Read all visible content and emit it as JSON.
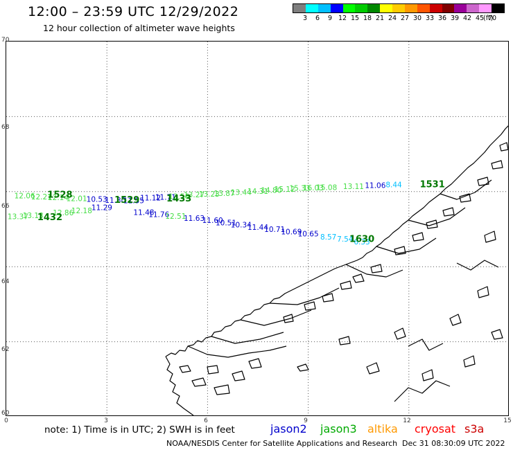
{
  "title": "12:00 – 23:59 UTC 12/29/2022",
  "subtitle": "12 hour collection of altimeter wave heights",
  "colorbar": {
    "colors": [
      "#7f7f7f",
      "#00ffff",
      "#00bfff",
      "#0000ff",
      "#00ff00",
      "#00cc00",
      "#008800",
      "#ffff00",
      "#ffcc00",
      "#ff9900",
      "#ff5500",
      "#cc0000",
      "#800000",
      "#990099",
      "#cc66cc",
      "#ff99ff",
      "#000000"
    ],
    "ticks": [
      "3",
      "6",
      "9",
      "12",
      "15",
      "18",
      "21",
      "24",
      "27",
      "30",
      "33",
      "36",
      "39",
      "42",
      "45",
      "70"
    ],
    "unit": "(ft)"
  },
  "axes": {
    "lat_labels": [
      "70",
      "68",
      "66",
      "64",
      "62",
      "60"
    ],
    "lon_labels": [
      "0",
      "3",
      "6",
      "9",
      "12",
      "15"
    ]
  },
  "satellites": [
    {
      "name": "jason2",
      "color": "#0000cc"
    },
    {
      "name": "jason3",
      "color": "#00aa00"
    },
    {
      "name": "altika",
      "color": "#ff9900"
    },
    {
      "name": "cryosat",
      "color": "#ff0000"
    },
    {
      "name": "s3a",
      "color": "#cc0000"
    }
  ],
  "note": "note:  1) Time is in UTC;  2) SWH is in feet",
  "credit": "NOAA/NESDIS Center for Satellite Applications and Research",
  "generated": "Dec 31 08:30:09 UTC 2022",
  "observations": [
    {
      "t": "12.06",
      "lon": 0.55,
      "lat": 65.88,
      "c": "#44dd44"
    },
    {
      "t": "12.21",
      "lon": 1.05,
      "lat": 65.85,
      "c": "#44dd44"
    },
    {
      "t": "12.14",
      "lon": 1.55,
      "lat": 65.83,
      "c": "#44dd44"
    },
    {
      "t": "12.01",
      "lon": 2.1,
      "lat": 65.8,
      "c": "#44dd44"
    },
    {
      "t": "10.53",
      "lon": 2.7,
      "lat": 65.78,
      "c": "#0000cc"
    },
    {
      "t": "11.30",
      "lon": 3.25,
      "lat": 65.76,
      "c": "#0000cc"
    },
    {
      "t": "11.55",
      "lon": 3.8,
      "lat": 65.75,
      "c": "#0000cc"
    },
    {
      "t": "11.12",
      "lon": 4.3,
      "lat": 65.82,
      "c": "#0000cc"
    },
    {
      "t": "11.71",
      "lon": 4.75,
      "lat": 65.84,
      "c": "#0000cc"
    },
    {
      "t": "13.56",
      "lon": 5.15,
      "lat": 65.86,
      "c": "#44dd44"
    },
    {
      "t": "13.27",
      "lon": 5.6,
      "lat": 65.9,
      "c": "#44dd44"
    },
    {
      "t": "13.23",
      "lon": 6.05,
      "lat": 65.92,
      "c": "#44dd44"
    },
    {
      "t": "13.87",
      "lon": 6.5,
      "lat": 65.94,
      "c": "#44dd44"
    },
    {
      "t": "13.44",
      "lon": 7.0,
      "lat": 65.97,
      "c": "#44dd44"
    },
    {
      "t": "14.31",
      "lon": 7.5,
      "lat": 66.0,
      "c": "#44dd44"
    },
    {
      "t": "14.80",
      "lon": 7.9,
      "lat": 66.02,
      "c": "#44dd44"
    },
    {
      "t": "15.12",
      "lon": 8.3,
      "lat": 66.05,
      "c": "#44dd44"
    },
    {
      "t": "15.33",
      "lon": 8.75,
      "lat": 66.08,
      "c": "#44dd44"
    },
    {
      "t": "16.03",
      "lon": 9.15,
      "lat": 66.09,
      "c": "#44dd44"
    },
    {
      "t": "15.08",
      "lon": 9.55,
      "lat": 66.1,
      "c": "#44dd44"
    },
    {
      "t": "13.11",
      "lon": 10.35,
      "lat": 66.13,
      "c": "#44dd44"
    },
    {
      "t": "11.06",
      "lon": 11.0,
      "lat": 66.15,
      "c": "#0000cc"
    },
    {
      "t": "8.44",
      "lon": 11.55,
      "lat": 66.17,
      "c": "#00bfff"
    },
    {
      "t": "13.37",
      "lon": 0.35,
      "lat": 65.32,
      "c": "#44dd44"
    },
    {
      "t": "13.13",
      "lon": 0.8,
      "lat": 65.35,
      "c": "#44dd44"
    },
    {
      "t": "12.86",
      "lon": 1.7,
      "lat": 65.42,
      "c": "#44dd44"
    },
    {
      "t": "12.18",
      "lon": 2.25,
      "lat": 65.48,
      "c": "#44dd44"
    },
    {
      "t": "11.29",
      "lon": 2.85,
      "lat": 65.56,
      "c": "#0000cc"
    },
    {
      "t": "11.48",
      "lon": 4.1,
      "lat": 65.43,
      "c": "#0000cc"
    },
    {
      "t": "11.76",
      "lon": 4.55,
      "lat": 65.38,
      "c": "#0000cc"
    },
    {
      "t": "12.51",
      "lon": 5.05,
      "lat": 65.33,
      "c": "#44dd44"
    },
    {
      "t": "11.63",
      "lon": 5.6,
      "lat": 65.28,
      "c": "#0000cc"
    },
    {
      "t": "11.60",
      "lon": 6.15,
      "lat": 65.22,
      "c": "#0000cc"
    },
    {
      "t": "10.51",
      "lon": 6.55,
      "lat": 65.16,
      "c": "#0000cc"
    },
    {
      "t": "10.34",
      "lon": 7.0,
      "lat": 65.1,
      "c": "#0000cc"
    },
    {
      "t": "11.44",
      "lon": 7.5,
      "lat": 65.04,
      "c": "#0000cc"
    },
    {
      "t": "10.71",
      "lon": 8.0,
      "lat": 64.98,
      "c": "#0000cc"
    },
    {
      "t": "10.69",
      "lon": 8.5,
      "lat": 64.92,
      "c": "#0000cc"
    },
    {
      "t": "10.65",
      "lon": 9.0,
      "lat": 64.86,
      "c": "#0000cc"
    },
    {
      "t": "8.57",
      "lon": 9.6,
      "lat": 64.78,
      "c": "#00bfff"
    },
    {
      "t": "7.54",
      "lon": 10.1,
      "lat": 64.72,
      "c": "#00bfff"
    },
    {
      "t": "6.33",
      "lon": 10.6,
      "lat": 64.65,
      "c": "#00bfff"
    }
  ],
  "time_labels": [
    {
      "t": "1528",
      "lon": 1.6,
      "lat": 65.9,
      "c": "#007700"
    },
    {
      "t": "1432",
      "lon": 1.3,
      "lat": 65.3,
      "c": "#007700"
    },
    {
      "t": "1529",
      "lon": 3.6,
      "lat": 65.77,
      "c": "#007700"
    },
    {
      "t": "1433",
      "lon": 5.15,
      "lat": 65.8,
      "c": "#007700"
    },
    {
      "t": "1630",
      "lon": 10.6,
      "lat": 64.72,
      "c": "#007700"
    },
    {
      "t": "1531",
      "lon": 12.7,
      "lat": 66.18,
      "c": "#007700"
    }
  ]
}
